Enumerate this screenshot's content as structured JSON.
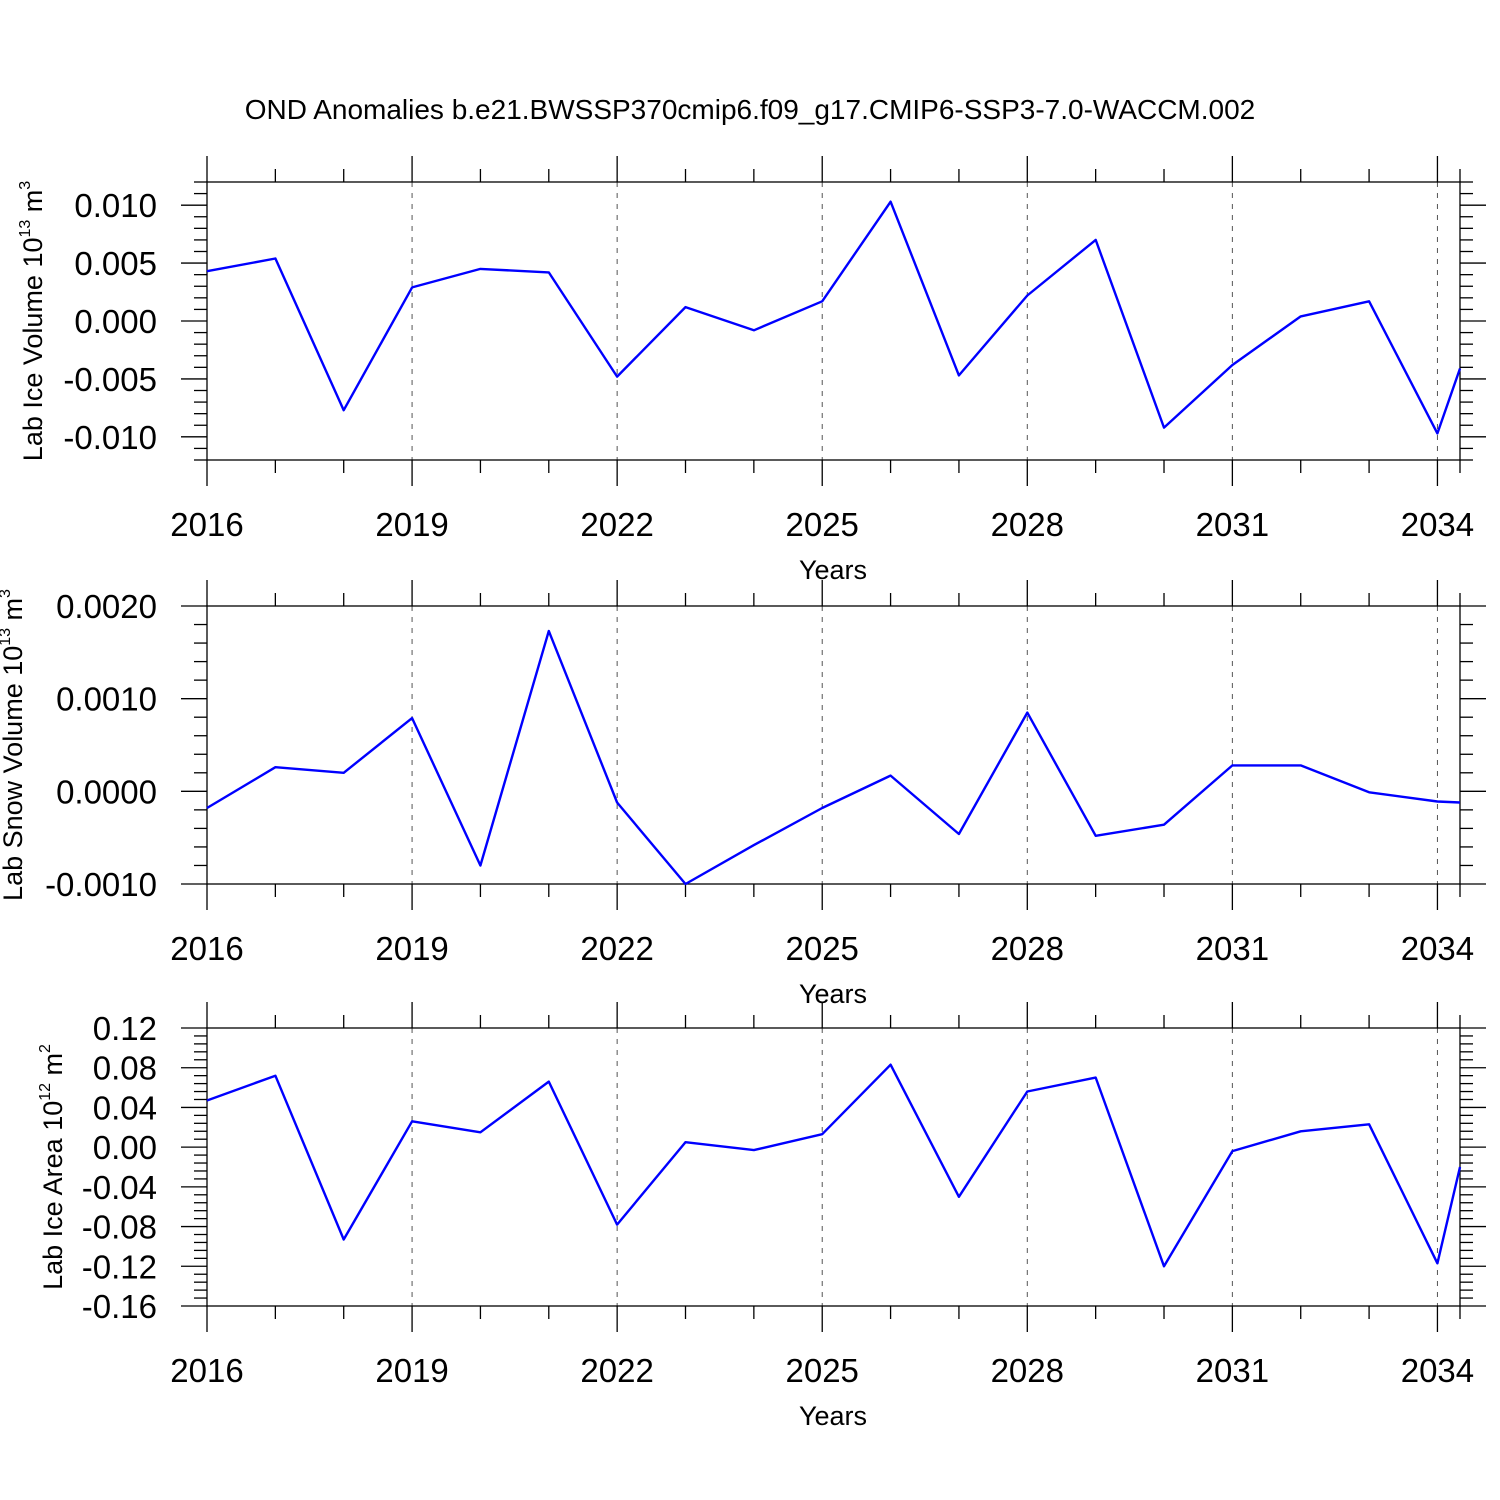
{
  "title": "OND Anomalies b.e21.BWSSP370cmip6.f09_g17.CMIP6-SSP3-7.0-WACCM.002",
  "colors": {
    "series": "#0000ff",
    "axis": "#000000",
    "grid": "#555555"
  },
  "chart_data": [
    {
      "type": "line",
      "id": "ice-volume",
      "ylabel": {
        "main": "Lab Ice Volume 10",
        "exp": "13",
        "unit": " m",
        "unit_exp": "3"
      },
      "xlabel": "Years",
      "xlim": [
        2016,
        2034.33
      ],
      "xticks": [
        2016,
        2019,
        2022,
        2025,
        2028,
        2031,
        2034
      ],
      "xtick_labels": [
        "2016",
        "2019",
        "2022",
        "2025",
        "2028",
        "2031",
        "2034"
      ],
      "ylim": [
        -0.012,
        0.012
      ],
      "yticks": [
        -0.01,
        -0.005,
        0,
        0.005,
        0.01
      ],
      "ytick_labels": [
        "-0.010",
        "-0.005",
        "0.000",
        "0.005",
        "0.010"
      ],
      "x": [
        2016,
        2017,
        2018,
        2019,
        2020,
        2021,
        2022,
        2023,
        2024,
        2025,
        2026,
        2027,
        2028,
        2029,
        2030,
        2031,
        2032,
        2033,
        2034,
        2034.33
      ],
      "series": [
        {
          "name": "Lab Ice Volume",
          "values": [
            0.0043,
            0.0054,
            -0.0077,
            0.0029,
            0.0045,
            0.0042,
            -0.0048,
            0.0012,
            -0.0008,
            0.0017,
            0.0103,
            -0.0047,
            0.0022,
            0.007,
            -0.0092,
            -0.0038,
            0.0004,
            0.0017,
            -0.0097,
            -0.0041
          ]
        }
      ]
    },
    {
      "type": "line",
      "id": "snow-volume",
      "ylabel": {
        "main": "Lab Snow Volume 10",
        "exp": "13",
        "unit": " m",
        "unit_exp": "3"
      },
      "xlabel": "Years",
      "xlim": [
        2016,
        2034.33
      ],
      "xticks": [
        2016,
        2019,
        2022,
        2025,
        2028,
        2031,
        2034
      ],
      "xtick_labels": [
        "2016",
        "2019",
        "2022",
        "2025",
        "2028",
        "2031",
        "2034"
      ],
      "ylim": [
        -0.001,
        0.002
      ],
      "yticks": [
        -0.001,
        0,
        0.001,
        0.002
      ],
      "ytick_labels": [
        "-0.0010",
        "0.0000",
        "0.0010",
        "0.0020"
      ],
      "x": [
        2016,
        2017,
        2018,
        2019,
        2020,
        2021,
        2022,
        2023,
        2024,
        2025,
        2026,
        2027,
        2028,
        2029,
        2030,
        2031,
        2032,
        2033,
        2034,
        2034.33
      ],
      "series": [
        {
          "name": "Lab Snow Volume",
          "values": [
            -0.00018,
            0.00026,
            0.0002,
            0.00079,
            -0.0008,
            0.00173,
            -0.00012,
            -0.001,
            -0.00058,
            -0.00018,
            0.00017,
            -0.00046,
            0.00085,
            -0.00048,
            -0.00036,
            0.00028,
            0.00028,
            -1e-05,
            -0.00011,
            -0.00012
          ]
        }
      ]
    },
    {
      "type": "line",
      "id": "ice-area",
      "ylabel": {
        "main": "Lab Ice Area 10",
        "exp": "12",
        "unit": " m",
        "unit_exp": "2"
      },
      "xlabel": "Years",
      "xlim": [
        2016,
        2034.33
      ],
      "xticks": [
        2016,
        2019,
        2022,
        2025,
        2028,
        2031,
        2034
      ],
      "xtick_labels": [
        "2016",
        "2019",
        "2022",
        "2025",
        "2028",
        "2031",
        "2034"
      ],
      "ylim": [
        -0.16,
        0.12
      ],
      "yticks": [
        -0.16,
        -0.12,
        -0.08,
        -0.04,
        0,
        0.04,
        0.08,
        0.12
      ],
      "ytick_labels": [
        "-0.16",
        "-0.12",
        "-0.08",
        "-0.04",
        "0.00",
        "0.04",
        "0.08",
        "0.12"
      ],
      "x": [
        2016,
        2017,
        2018,
        2019,
        2020,
        2021,
        2022,
        2023,
        2024,
        2025,
        2026,
        2027,
        2028,
        2029,
        2030,
        2031,
        2032,
        2033,
        2034,
        2034.33
      ],
      "series": [
        {
          "name": "Lab Ice Area",
          "values": [
            0.047,
            0.072,
            -0.093,
            0.026,
            0.015,
            0.066,
            -0.078,
            0.005,
            -0.003,
            0.013,
            0.083,
            -0.05,
            0.056,
            0.07,
            -0.12,
            -0.004,
            0.016,
            0.023,
            -0.117,
            -0.02
          ]
        }
      ]
    }
  ]
}
